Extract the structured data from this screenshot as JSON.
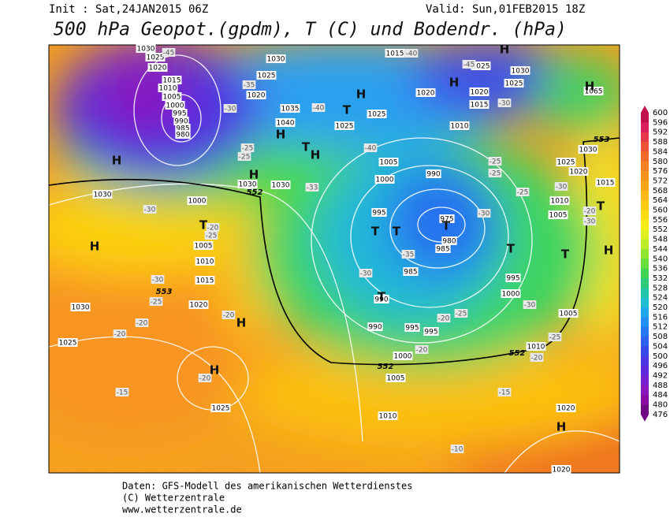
{
  "header": {
    "init": "Init : Sat,24JAN2015 06Z",
    "valid": "Valid: Sun,01FEB2015 18Z",
    "title": "500 hPa Geopot.(gpdm), T (C) und Bodendr. (hPa)"
  },
  "scale": {
    "labels": [
      "600",
      "596",
      "592",
      "588",
      "584",
      "580",
      "576",
      "572",
      "568",
      "564",
      "560",
      "556",
      "552",
      "548",
      "544",
      "540",
      "536",
      "532",
      "528",
      "524",
      "520",
      "516",
      "512",
      "508",
      "504",
      "500",
      "496",
      "492",
      "488",
      "484",
      "480",
      "476"
    ],
    "colors": [
      "#c0104e",
      "#d8205c",
      "#e6384a",
      "#ee5236",
      "#f26a2a",
      "#f68024",
      "#f8941c",
      "#faa618",
      "#fcb814",
      "#fdca10",
      "#fedc0e",
      "#f6ec14",
      "#e2f020",
      "#bcec26",
      "#92e630",
      "#66de3c",
      "#40d654",
      "#2ccc7c",
      "#22c4aa",
      "#20bcd2",
      "#20a8ee",
      "#2090f8",
      "#2478f4",
      "#2c60ee",
      "#3848e6",
      "#4a36e0",
      "#6028dc",
      "#7820d0",
      "#8a16bc",
      "#8a0ca0",
      "#700884"
    ]
  },
  "map": {
    "labels": [
      "1030",
      "1025",
      "1020",
      "1015",
      "1010",
      "1005",
      "1000",
      "995",
      "990",
      "985",
      "980",
      "1030",
      "1025",
      "1020",
      "1035",
      "1040",
      "1025",
      "1025",
      "1015",
      "1020",
      "1025",
      "1020",
      "1015",
      "1010",
      "1030",
      "1025",
      "1005",
      "1000",
      "990",
      "995",
      "975",
      "980",
      "985",
      "985",
      "990",
      "990",
      "995",
      "995",
      "1000",
      "1005",
      "1010",
      "1010",
      "1005",
      "995",
      "1000",
      "1005",
      "1010",
      "1015",
      "1020",
      "1030",
      "1025",
      "1065",
      "1030",
      "1000",
      "1005",
      "1010",
      "1015",
      "1020",
      "1030",
      "1025",
      "1025",
      "1030",
      "1030",
      "1020",
      "1020",
      "-45",
      "-35",
      "-30",
      "-40",
      "-25",
      "-25",
      "-40",
      "-40",
      "-45",
      "-30",
      "-25",
      "-25",
      "-25",
      "-33",
      "-30",
      "-25",
      "-20",
      "-30",
      "-25",
      "-20",
      "-20",
      "-20",
      "-20",
      "-15",
      "-35",
      "-30",
      "-30",
      "-25",
      "-20",
      "-20",
      "-15",
      "-10",
      "-20",
      "-25",
      "-30",
      "-30",
      "-20",
      "-30",
      "552",
      "553",
      "552",
      "553",
      "552",
      "H",
      "H",
      "T",
      "H",
      "T",
      "H",
      "H",
      "T",
      "H",
      "H",
      "H",
      "H",
      "T",
      "T",
      "T",
      "T",
      "T",
      "T",
      "H",
      "H",
      "H",
      "T",
      "H"
    ]
  },
  "footer": {
    "line1": "Daten: GFS-Modell des amerikanischen Wetterdienstes",
    "line2": "(C) Wetterzentrale",
    "line3": "www.wetterzentrale.de"
  }
}
